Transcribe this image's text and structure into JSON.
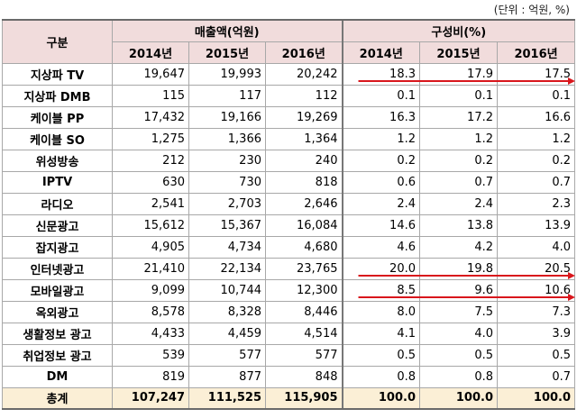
{
  "unit_note": "(단위 : 억원, %)",
  "header": {
    "category": "구분",
    "sales_group": "매출액(억원)",
    "ratio_group": "구성비(%)",
    "years": [
      "2014년",
      "2015년",
      "2016년"
    ]
  },
  "rows": [
    {
      "label": "지상파 TV",
      "sales": [
        "19,647",
        "19,993",
        "20,242"
      ],
      "ratio": [
        "18.3",
        "17.9",
        "17.5"
      ]
    },
    {
      "label": "지상파 DMB",
      "sales": [
        "115",
        "117",
        "112"
      ],
      "ratio": [
        "0.1",
        "0.1",
        "0.1"
      ]
    },
    {
      "label": "케이블 PP",
      "sales": [
        "17,432",
        "19,166",
        "19,269"
      ],
      "ratio": [
        "16.3",
        "17.2",
        "16.6"
      ]
    },
    {
      "label": "케이블 SO",
      "sales": [
        "1,275",
        "1,366",
        "1,364"
      ],
      "ratio": [
        "1.2",
        "1.2",
        "1.2"
      ]
    },
    {
      "label": "위성방송",
      "sales": [
        "212",
        "230",
        "240"
      ],
      "ratio": [
        "0.2",
        "0.2",
        "0.2"
      ]
    },
    {
      "label": "IPTV",
      "sales": [
        "630",
        "730",
        "818"
      ],
      "ratio": [
        "0.6",
        "0.7",
        "0.7"
      ]
    },
    {
      "label": "라디오",
      "sales": [
        "2,541",
        "2,703",
        "2,646"
      ],
      "ratio": [
        "2.4",
        "2.4",
        "2.3"
      ]
    },
    {
      "label": "신문광고",
      "sales": [
        "15,612",
        "15,367",
        "16,084"
      ],
      "ratio": [
        "14.6",
        "13.8",
        "13.9"
      ]
    },
    {
      "label": "잡지광고",
      "sales": [
        "4,905",
        "4,734",
        "4,680"
      ],
      "ratio": [
        "4.6",
        "4.2",
        "4.0"
      ]
    },
    {
      "label": "인터넷광고",
      "sales": [
        "21,410",
        "22,134",
        "23,765"
      ],
      "ratio": [
        "20.0",
        "19.8",
        "20.5"
      ]
    },
    {
      "label": "모바일광고",
      "sales": [
        "9,099",
        "10,744",
        "12,300"
      ],
      "ratio": [
        "8.5",
        "9.6",
        "10.6"
      ]
    },
    {
      "label": "옥외광고",
      "sales": [
        "8,578",
        "8,328",
        "8,446"
      ],
      "ratio": [
        "8.0",
        "7.5",
        "7.3"
      ]
    },
    {
      "label": "생활정보 광고",
      "sales": [
        "4,433",
        "4,459",
        "4,514"
      ],
      "ratio": [
        "4.1",
        "4.0",
        "3.9"
      ]
    },
    {
      "label": "취업정보 광고",
      "sales": [
        "539",
        "577",
        "577"
      ],
      "ratio": [
        "0.5",
        "0.5",
        "0.5"
      ]
    },
    {
      "label": "DM",
      "sales": [
        "819",
        "877",
        "848"
      ],
      "ratio": [
        "0.8",
        "0.8",
        "0.7"
      ]
    }
  ],
  "total": {
    "label": "총계",
    "sales": [
      "107,247",
      "111,525",
      "115,905"
    ],
    "ratio": [
      "100.0",
      "100.0",
      "100.0"
    ]
  },
  "annotation": {
    "arrow_color": "#d9161c",
    "highlighted_rows": [
      "지상파 TV",
      "인터넷광고",
      "모바일광고"
    ]
  }
}
